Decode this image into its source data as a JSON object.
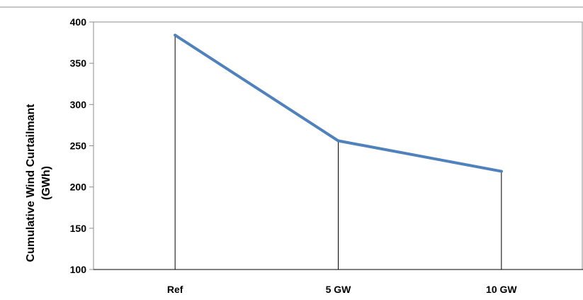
{
  "chart_data": {
    "type": "line",
    "categories": [
      "Ref",
      "5 GW",
      "10 GW"
    ],
    "series": [
      {
        "values": [
          384,
          256,
          219
        ]
      }
    ],
    "ylabel_lines": [
      "Cumulative Wind Curtailmant",
      "(GWh)"
    ],
    "ylim": [
      100,
      400
    ],
    "yticks": [
      100,
      150,
      200,
      250,
      300,
      350,
      400
    ],
    "drop_lines": true,
    "grid": false,
    "legend": "none",
    "colors": {
      "series": "#4f81bd",
      "drop_line": "#000000",
      "axis": "#000000",
      "frame": "#8c8c8c"
    }
  }
}
